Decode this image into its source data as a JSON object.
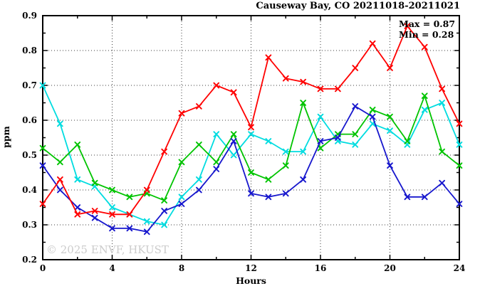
{
  "title": "Causeway Bay, CO 20211018-20211021",
  "annotations": {
    "max_label": "Max = 0.87",
    "min_label": "Min = 0.28"
  },
  "watermark": "© 2025 ENVF, HKUST",
  "colors": {
    "red": "#ff0000",
    "green": "#00c400",
    "cyan": "#00dce0",
    "blue": "#1717cd",
    "grid": "#3c3c3c",
    "axis": "#000000",
    "watermark": "#cccccc"
  },
  "chart_data": {
    "type": "line",
    "title": "Causeway Bay, CO 20211018-20211021",
    "xlabel": "Hours",
    "ylabel": "ppm",
    "xlim": [
      0,
      24
    ],
    "ylim": [
      0.2,
      0.9
    ],
    "xticks": [
      0,
      4,
      8,
      12,
      16,
      20,
      24
    ],
    "xminorticks": [
      2,
      6,
      10,
      14,
      18,
      22
    ],
    "yticks": [
      0.2,
      0.3,
      0.4,
      0.5,
      0.6,
      0.7,
      0.8,
      0.9
    ],
    "yminorticks": [
      0.25,
      0.35,
      0.45,
      0.55,
      0.65,
      0.75,
      0.85
    ],
    "grid": true,
    "legend": "none",
    "marker": "x",
    "max": 0.87,
    "min": 0.28,
    "x": [
      0,
      1,
      2,
      3,
      4,
      5,
      6,
      7,
      8,
      9,
      10,
      11,
      12,
      13,
      14,
      15,
      16,
      17,
      18,
      19,
      20,
      21,
      22,
      23,
      24
    ],
    "series": [
      {
        "name": "cyan-line",
        "color": "#00dce0",
        "values": [
          0.7,
          0.59,
          0.43,
          0.41,
          0.35,
          0.33,
          0.31,
          0.3,
          0.38,
          0.43,
          0.56,
          0.5,
          0.56,
          0.54,
          0.51,
          0.51,
          0.61,
          0.54,
          0.53,
          0.59,
          0.57,
          0.53,
          0.63,
          0.65,
          0.53
        ]
      },
      {
        "name": "green-line",
        "color": "#00c400",
        "values": [
          0.52,
          0.48,
          0.53,
          0.42,
          0.4,
          0.38,
          0.39,
          0.37,
          0.48,
          0.53,
          0.48,
          0.56,
          0.45,
          0.43,
          0.47,
          0.65,
          0.52,
          0.56,
          0.56,
          0.63,
          0.61,
          0.54,
          0.67,
          0.51,
          0.47
        ]
      },
      {
        "name": "blue-line",
        "color": "#1717cd",
        "values": [
          0.47,
          0.4,
          0.35,
          0.32,
          0.29,
          0.29,
          0.28,
          0.34,
          0.36,
          0.4,
          0.46,
          0.54,
          0.39,
          0.38,
          0.39,
          0.43,
          0.54,
          0.55,
          0.64,
          0.61,
          0.47,
          0.38,
          0.38,
          0.42,
          0.36
        ]
      },
      {
        "name": "red-line",
        "color": "#ff0000",
        "values": [
          0.36,
          0.43,
          0.33,
          0.34,
          0.33,
          0.33,
          0.4,
          0.51,
          0.62,
          0.64,
          0.7,
          0.68,
          0.58,
          0.78,
          0.72,
          0.71,
          0.69,
          0.69,
          0.75,
          0.82,
          0.75,
          0.87,
          0.81,
          0.69,
          0.59
        ]
      }
    ]
  }
}
